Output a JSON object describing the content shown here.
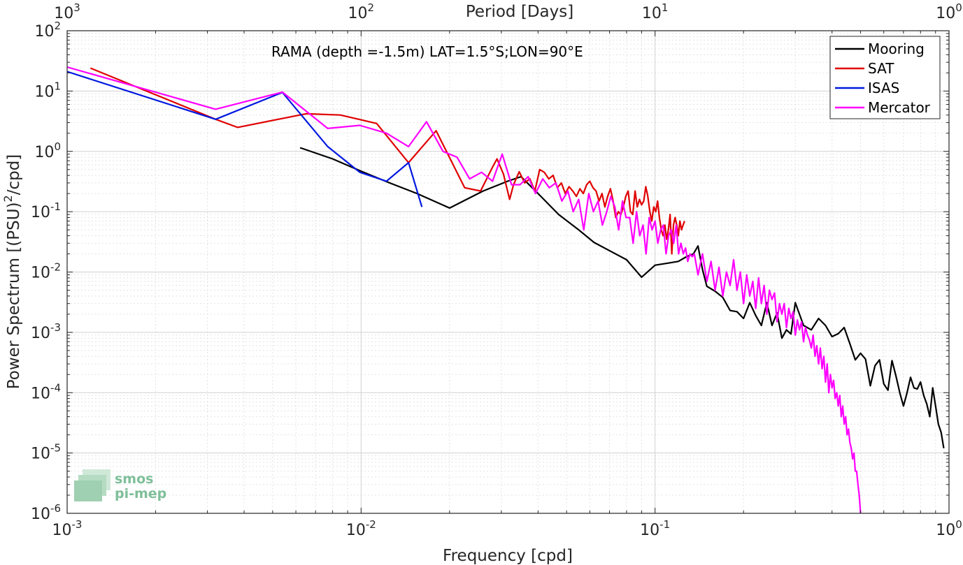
{
  "chart_data": {
    "type": "line",
    "annotation": "RAMA (depth =-1.5m) LAT=1.5°S;LON=90°E",
    "xlabel": "Frequency [cpd]",
    "ylabel": "Power Spectrum [(PSU)²/cpd]",
    "top_xlabel": "Period [Days]",
    "xscale": "log",
    "yscale": "log",
    "xlim": [
      0.001,
      1
    ],
    "ylim": [
      1e-06,
      100
    ],
    "grid": true,
    "legend_position": "top-right",
    "x_ticks": [
      {
        "value": 0.001,
        "base": "10",
        "exp": "-3"
      },
      {
        "value": 0.01,
        "base": "10",
        "exp": "-2"
      },
      {
        "value": 0.1,
        "base": "10",
        "exp": "-1"
      },
      {
        "value": 1,
        "base": "10",
        "exp": "0"
      }
    ],
    "top_ticks": [
      {
        "value": 0.001,
        "base": "10",
        "exp": "3"
      },
      {
        "value": 0.01,
        "base": "10",
        "exp": "2"
      },
      {
        "value": 0.1,
        "base": "10",
        "exp": "1"
      },
      {
        "value": 1,
        "base": "10",
        "exp": "0"
      }
    ],
    "y_ticks": [
      {
        "value": 1e-06,
        "base": "10",
        "exp": "-6"
      },
      {
        "value": 1e-05,
        "base": "10",
        "exp": "-5"
      },
      {
        "value": 0.0001,
        "base": "10",
        "exp": "-4"
      },
      {
        "value": 0.001,
        "base": "10",
        "exp": "-3"
      },
      {
        "value": 0.01,
        "base": "10",
        "exp": "-2"
      },
      {
        "value": 0.1,
        "base": "10",
        "exp": "-1"
      },
      {
        "value": 1,
        "base": "10",
        "exp": "0"
      },
      {
        "value": 10,
        "base": "10",
        "exp": "1"
      },
      {
        "value": 100,
        "base": "10",
        "exp": "2"
      }
    ],
    "series": [
      {
        "name": "Mooring",
        "color": "#000000",
        "x": [
          0.0062,
          0.008,
          0.01,
          0.0125,
          0.0155,
          0.02,
          0.026,
          0.0315,
          0.035,
          0.04,
          0.047,
          0.055,
          0.062,
          0.072,
          0.08,
          0.09,
          0.1,
          0.11,
          0.12,
          0.128,
          0.135,
          0.14,
          0.145,
          0.15,
          0.16,
          0.17,
          0.18,
          0.19,
          0.2,
          0.21,
          0.22,
          0.23,
          0.24,
          0.25,
          0.26,
          0.27,
          0.28,
          0.29,
          0.3,
          0.32,
          0.34,
          0.36,
          0.38,
          0.4,
          0.42,
          0.44,
          0.46,
          0.48,
          0.5,
          0.52,
          0.54,
          0.56,
          0.58,
          0.6,
          0.62,
          0.64,
          0.66,
          0.68,
          0.7,
          0.72,
          0.74,
          0.76,
          0.78,
          0.8,
          0.82,
          0.84,
          0.86,
          0.88,
          0.9,
          0.92,
          0.94,
          0.96
        ],
        "y": [
          1.15,
          0.75,
          0.47,
          0.3,
          0.2,
          0.115,
          0.22,
          0.32,
          0.38,
          0.2,
          0.09,
          0.05,
          0.031,
          0.021,
          0.016,
          0.0082,
          0.013,
          0.014,
          0.015,
          0.018,
          0.02,
          0.027,
          0.011,
          0.0058,
          0.0048,
          0.0038,
          0.0023,
          0.0022,
          0.0017,
          0.0031,
          0.0019,
          0.0013,
          0.0031,
          0.0013,
          0.0021,
          0.0008,
          0.0011,
          0.00094,
          0.0031,
          0.0013,
          0.0011,
          0.0017,
          0.0013,
          0.00085,
          0.00095,
          0.0012,
          0.00065,
          0.00035,
          0.00045,
          0.00036,
          0.00013,
          0.00028,
          0.00035,
          0.00014,
          0.00011,
          0.00034,
          0.00019,
          0.0001,
          6e-05,
          0.0001,
          0.00018,
          0.00012,
          0.000115,
          0.00015,
          9e-05,
          6.5e-05,
          4e-05,
          0.00012,
          6e-05,
          3e-05,
          2.2e-05,
          1.2e-05
        ]
      },
      {
        "name": "SAT",
        "color": "#e00000",
        "x": [
          0.0012,
          0.0032,
          0.0038,
          0.0065,
          0.0085,
          0.0113,
          0.0145,
          0.018,
          0.0225,
          0.0255,
          0.028,
          0.029,
          0.0305,
          0.032,
          0.033,
          0.0345,
          0.036,
          0.0375,
          0.039,
          0.0405,
          0.042,
          0.0435,
          0.045,
          0.0465,
          0.048,
          0.0495,
          0.051,
          0.0525,
          0.054,
          0.0555,
          0.057,
          0.0585,
          0.06,
          0.0615,
          0.063,
          0.0645,
          0.066,
          0.0675,
          0.069,
          0.0705,
          0.072,
          0.0735,
          0.075,
          0.0765,
          0.078,
          0.0795,
          0.081,
          0.0825,
          0.084,
          0.0855,
          0.087,
          0.0885,
          0.09,
          0.0915,
          0.093,
          0.0945,
          0.096,
          0.0975,
          0.099,
          0.1005,
          0.102,
          0.1035,
          0.105,
          0.1065,
          0.108,
          0.1095,
          0.111,
          0.1125,
          0.114,
          0.1155,
          0.117,
          0.1185,
          0.12,
          0.1215,
          0.123,
          0.1245,
          0.126
        ],
        "y": [
          24,
          3.4,
          2.5,
          4.2,
          4.0,
          2.9,
          0.65,
          2.2,
          0.25,
          0.22,
          0.55,
          0.75,
          0.42,
          0.16,
          0.28,
          0.46,
          0.3,
          0.35,
          0.22,
          0.5,
          0.45,
          0.35,
          0.4,
          0.25,
          0.3,
          0.2,
          0.26,
          0.22,
          0.18,
          0.24,
          0.2,
          0.28,
          0.32,
          0.25,
          0.22,
          0.15,
          0.2,
          0.12,
          0.18,
          0.24,
          0.15,
          0.08,
          0.1,
          0.09,
          0.12,
          0.18,
          0.22,
          0.1,
          0.09,
          0.22,
          0.12,
          0.16,
          0.13,
          0.15,
          0.26,
          0.18,
          0.1,
          0.07,
          0.12,
          0.1,
          0.15,
          0.08,
          0.05,
          0.04,
          0.06,
          0.035,
          0.05,
          0.09,
          0.02,
          0.06,
          0.08,
          0.06,
          0.04,
          0.07,
          0.05,
          0.06,
          0.07
        ]
      },
      {
        "name": "ISAS",
        "color": "#0018e0",
        "x": [
          0.001,
          0.0032,
          0.0054,
          0.0077,
          0.0099,
          0.0122,
          0.0145,
          0.0161
        ],
        "y": [
          21,
          3.4,
          9.5,
          1.2,
          0.45,
          0.32,
          0.65,
          0.12
        ]
      },
      {
        "name": "Mercator",
        "color": "#ff00ff",
        "x": [
          0.001,
          0.0032,
          0.0054,
          0.0077,
          0.0099,
          0.0122,
          0.0145,
          0.0167,
          0.019,
          0.0212,
          0.0234,
          0.0257,
          0.028,
          0.0302,
          0.0325,
          0.0347,
          0.037,
          0.0392,
          0.0415,
          0.0437,
          0.046,
          0.0482,
          0.0505,
          0.0527,
          0.055,
          0.0572,
          0.0595,
          0.0617,
          0.064,
          0.0662,
          0.0685,
          0.0707,
          0.073,
          0.0752,
          0.0775,
          0.0797,
          0.082,
          0.0842,
          0.0865,
          0.0887,
          0.091,
          0.0932,
          0.0955,
          0.0977,
          0.1,
          0.1022,
          0.1045,
          0.1067,
          0.109,
          0.1112,
          0.1135,
          0.1157,
          0.118,
          0.1202,
          0.1225,
          0.1247,
          0.127,
          0.1292,
          0.1315,
          0.1337,
          0.136,
          0.14,
          0.145,
          0.15,
          0.155,
          0.16,
          0.165,
          0.17,
          0.175,
          0.18,
          0.185,
          0.19,
          0.195,
          0.2,
          0.205,
          0.21,
          0.215,
          0.22,
          0.225,
          0.23,
          0.235,
          0.24,
          0.245,
          0.25,
          0.255,
          0.26,
          0.265,
          0.27,
          0.275,
          0.28,
          0.285,
          0.29,
          0.295,
          0.3,
          0.305,
          0.31,
          0.315,
          0.32,
          0.325,
          0.33,
          0.335,
          0.34,
          0.345,
          0.35,
          0.355,
          0.36,
          0.365,
          0.37,
          0.375,
          0.38,
          0.385,
          0.39,
          0.395,
          0.4,
          0.405,
          0.41,
          0.415,
          0.42,
          0.425,
          0.43,
          0.435,
          0.44,
          0.445,
          0.45,
          0.455,
          0.46,
          0.465,
          0.47,
          0.475,
          0.48,
          0.485,
          0.49,
          0.495,
          0.5
        ],
        "y": [
          25,
          5.0,
          9.6,
          2.4,
          2.7,
          2.0,
          1.2,
          3.1,
          1.0,
          0.8,
          0.35,
          0.45,
          0.32,
          0.9,
          0.28,
          0.28,
          0.38,
          0.2,
          0.35,
          0.25,
          0.3,
          0.15,
          0.22,
          0.1,
          0.16,
          0.05,
          0.2,
          0.1,
          0.15,
          0.06,
          0.1,
          0.18,
          0.12,
          0.05,
          0.15,
          0.08,
          0.08,
          0.03,
          0.1,
          0.04,
          0.06,
          0.02,
          0.08,
          0.05,
          0.07,
          0.03,
          0.05,
          0.06,
          0.02,
          0.04,
          0.05,
          0.03,
          0.06,
          0.02,
          0.03,
          0.02,
          0.025,
          0.015,
          0.02,
          0.018,
          0.02,
          0.009,
          0.02,
          0.007,
          0.015,
          0.005,
          0.012,
          0.004,
          0.01,
          0.006,
          0.016,
          0.005,
          0.01,
          0.003,
          0.009,
          0.004,
          0.007,
          0.0025,
          0.008,
          0.003,
          0.006,
          0.002,
          0.005,
          0.0035,
          0.0045,
          0.0015,
          0.003,
          0.002,
          0.003,
          0.0012,
          0.0025,
          0.0017,
          0.0022,
          0.0009,
          0.0016,
          0.0011,
          0.0015,
          0.0007,
          0.0012,
          0.0009,
          0.00075,
          0.00055,
          0.0009,
          0.0004,
          0.0006,
          0.0003,
          0.00055,
          0.00025,
          0.0004,
          0.00015,
          0.0003,
          0.0001,
          0.0002,
          0.00012,
          0.00016,
          8e-05,
          0.0001,
          6e-05,
          9e-05,
          4e-05,
          6e-05,
          3e-05,
          4e-05,
          2e-05,
          2.5e-05,
          1.5e-05,
          1.2e-05,
          8e-06,
          1e-05,
          5e-06,
          5e-06,
          3e-06,
          2e-06,
          1e-06
        ]
      }
    ]
  },
  "logo": {
    "line1": "smos",
    "line2": "pi-mep"
  }
}
